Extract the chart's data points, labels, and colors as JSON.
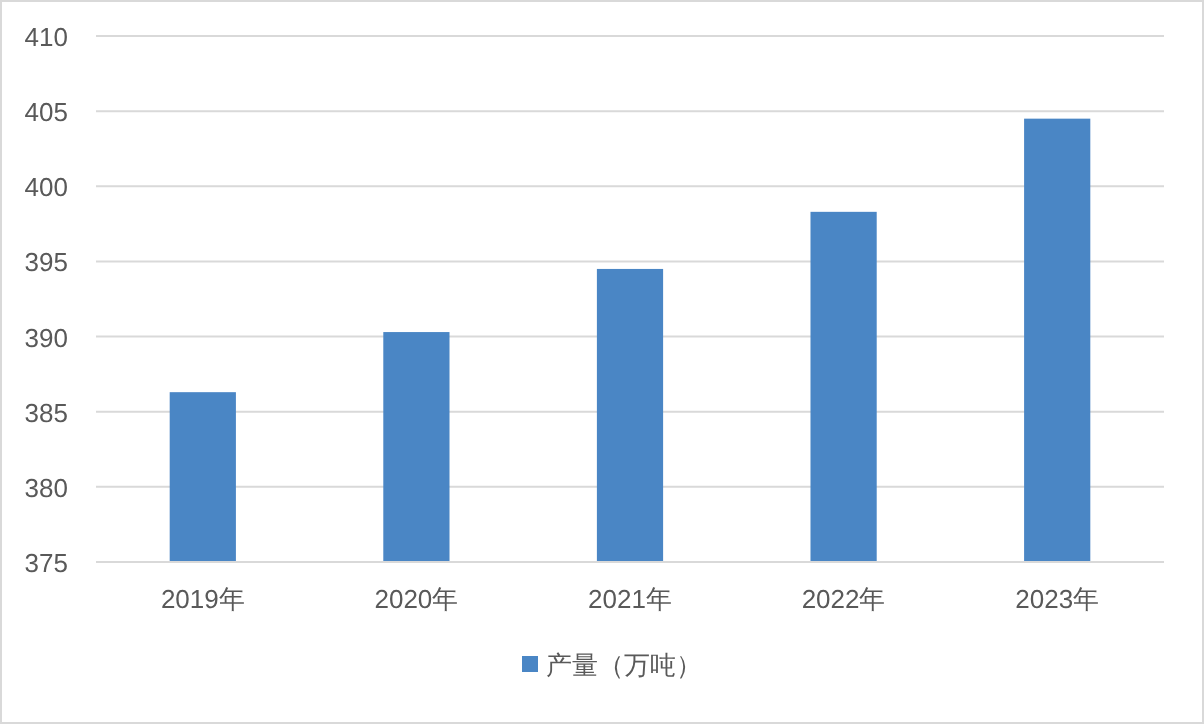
{
  "chart_data": {
    "type": "bar",
    "categories": [
      "2019年",
      "2020年",
      "2021年",
      "2022年",
      "2023年"
    ],
    "series": [
      {
        "name": "产量（万吨）",
        "color": "#4a86c5",
        "values": [
          386.3,
          390.3,
          394.5,
          398.3,
          404.5
        ]
      }
    ],
    "ylim": [
      375,
      410
    ],
    "yticks": [
      375,
      380,
      385,
      390,
      395,
      400,
      405,
      410
    ],
    "grid": "y",
    "legend": "bottom"
  }
}
